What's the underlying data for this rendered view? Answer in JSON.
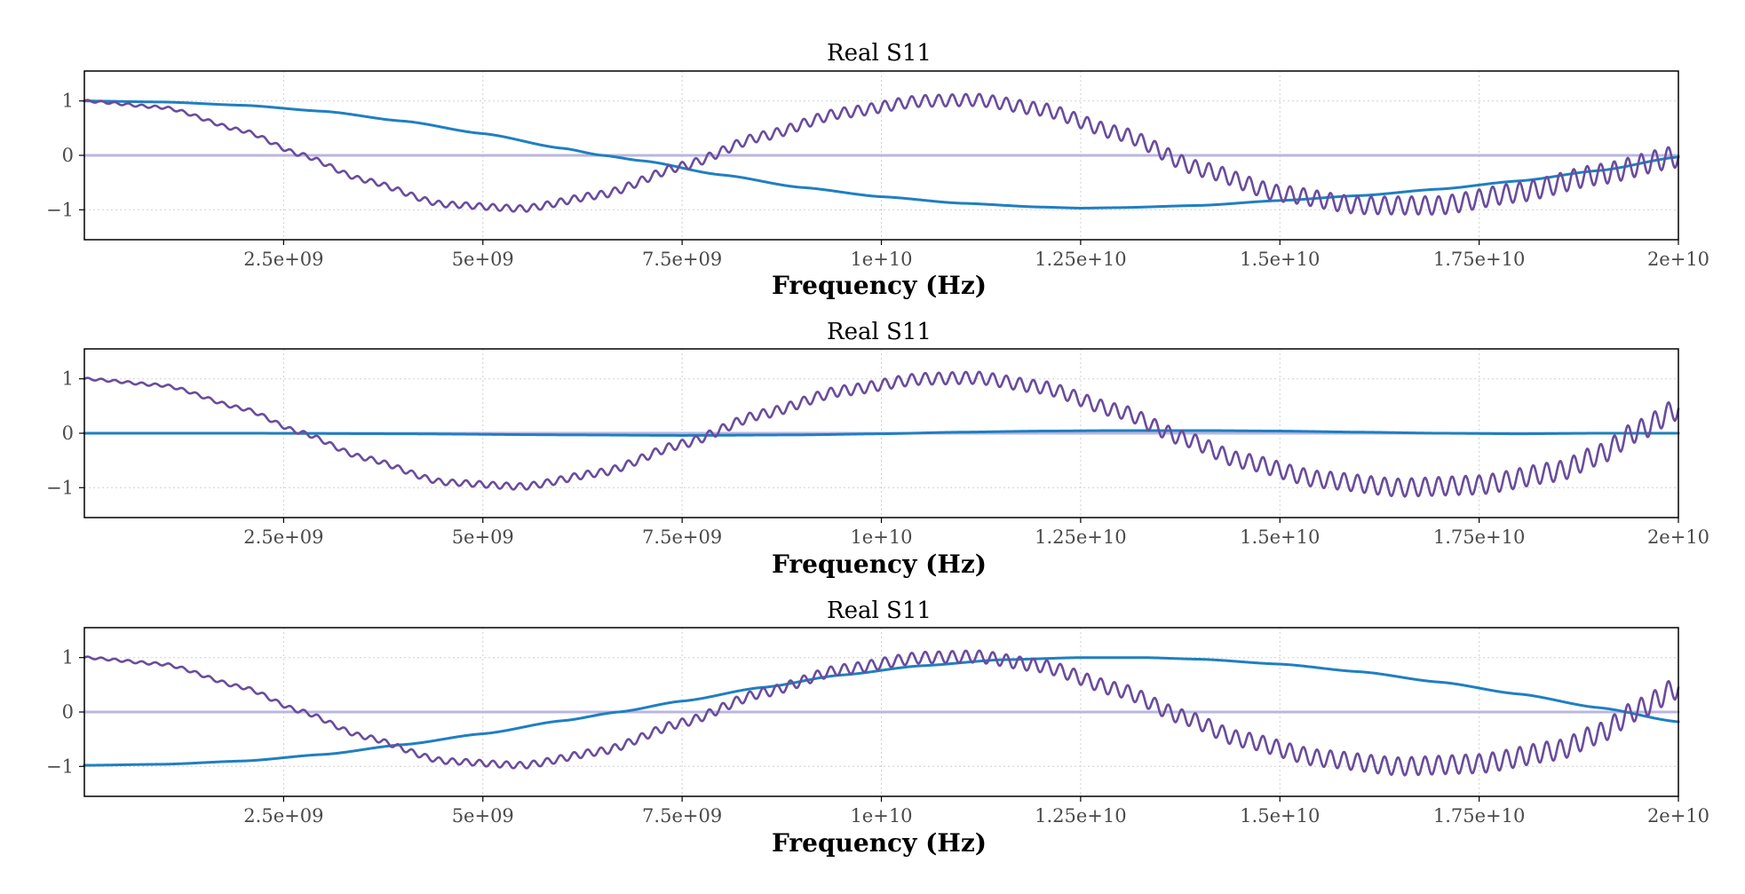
{
  "chart_data": [
    {
      "type": "line",
      "title": "Real S11",
      "xlabel": "Frequency (Hz)",
      "ylabel": "",
      "xlim": [
        0,
        20000000000
      ],
      "ylim": [
        -1.55,
        1.55
      ],
      "xticks": [
        2500000000,
        5000000000,
        7500000000,
        10000000000,
        12500000000,
        15000000000,
        17500000000,
        20000000000
      ],
      "xtick_labels": [
        "2.5e+09",
        "5e+09",
        "7.5e+09",
        "1e+10",
        "1.25e+10",
        "1.5e+10",
        "1.75e+10",
        "2e+10"
      ],
      "yticks": [
        -1,
        0,
        1
      ],
      "ytick_labels": [
        "−1",
        "0",
        "1"
      ],
      "grid": true,
      "series": [
        {
          "color": "#b9b6e0",
          "kind": "flat",
          "x": [
            0,
            20000000000
          ],
          "y": [
            0,
            0
          ]
        },
        {
          "color": "#1f7fc2",
          "kind": "smooth",
          "x": [
            0,
            1000000000,
            2000000000,
            3000000000,
            4000000000,
            5000000000,
            6000000000,
            6500000000,
            7000000000,
            8000000000,
            9000000000,
            10000000000,
            11000000000,
            12000000000,
            12500000000,
            13000000000,
            14000000000,
            15000000000,
            16000000000,
            17000000000,
            18000000000,
            19000000000,
            20000000000
          ],
          "y": [
            1.0,
            0.98,
            0.92,
            0.81,
            0.63,
            0.4,
            0.13,
            0.0,
            -0.1,
            -0.36,
            -0.59,
            -0.76,
            -0.88,
            -0.95,
            -0.97,
            -0.96,
            -0.92,
            -0.83,
            -0.74,
            -0.62,
            -0.47,
            -0.28,
            -0.03
          ]
        },
        {
          "color": "#6a4c9c",
          "kind": "ripple",
          "x": [
            0,
            1000000000,
            2000000000,
            2700000000,
            3500000000,
            4500000000,
            5500000000,
            6500000000,
            7500000000,
            8500000000,
            9500000000,
            10500000000,
            11200000000,
            12000000000,
            13000000000,
            14000000000,
            15000000000,
            16000000000,
            17000000000,
            18000000000,
            19000000000,
            20000000000
          ],
          "y": [
            1.0,
            0.88,
            0.45,
            0.02,
            -0.45,
            -0.9,
            -0.98,
            -0.72,
            -0.2,
            0.35,
            0.78,
            1.0,
            1.02,
            0.85,
            0.4,
            -0.25,
            -0.7,
            -0.92,
            -0.92,
            -0.68,
            -0.35,
            -0.02
          ]
        }
      ]
    },
    {
      "type": "line",
      "title": "Real S11",
      "xlabel": "Frequency (Hz)",
      "ylabel": "",
      "xlim": [
        0,
        20000000000
      ],
      "ylim": [
        -1.55,
        1.55
      ],
      "xticks": [
        2500000000,
        5000000000,
        7500000000,
        10000000000,
        12500000000,
        15000000000,
        17500000000,
        20000000000
      ],
      "xtick_labels": [
        "2.5e+09",
        "5e+09",
        "7.5e+09",
        "1e+10",
        "1.25e+10",
        "1.5e+10",
        "1.75e+10",
        "2e+10"
      ],
      "yticks": [
        -1,
        0,
        1
      ],
      "ytick_labels": [
        "−1",
        "0",
        "1"
      ],
      "grid": true,
      "series": [
        {
          "color": "#b9b6e0",
          "kind": "flat",
          "x": [
            0,
            20000000000
          ],
          "y": [
            0,
            0
          ]
        },
        {
          "color": "#1f7fc2",
          "kind": "smooth",
          "x": [
            0,
            2000000000,
            4000000000,
            6000000000,
            7500000000,
            9000000000,
            10000000000,
            11000000000,
            12000000000,
            13000000000,
            14000000000,
            15000000000,
            16000000000,
            17000000000,
            18000000000,
            19000000000,
            20000000000
          ],
          "y": [
            0.0,
            0.0,
            -0.01,
            -0.03,
            -0.04,
            -0.03,
            -0.01,
            0.02,
            0.04,
            0.05,
            0.05,
            0.04,
            0.02,
            0.0,
            -0.01,
            0.0,
            0.0
          ]
        },
        {
          "color": "#6a4c9c",
          "kind": "ripple",
          "x": [
            0,
            1000000000,
            2000000000,
            2700000000,
            3500000000,
            4500000000,
            5500000000,
            6500000000,
            7500000000,
            8500000000,
            9500000000,
            10500000000,
            11200000000,
            12000000000,
            13000000000,
            13800000000,
            14500000000,
            15500000000,
            16500000000,
            17500000000,
            18500000000,
            19000000000,
            19500000000,
            20000000000
          ],
          "y": [
            1.0,
            0.88,
            0.45,
            0.02,
            -0.45,
            -0.9,
            -0.98,
            -0.72,
            -0.2,
            0.35,
            0.78,
            1.0,
            1.02,
            0.85,
            0.4,
            -0.1,
            -0.5,
            -0.85,
            -1.0,
            -0.95,
            -0.7,
            -0.4,
            0.05,
            0.45
          ]
        }
      ]
    },
    {
      "type": "line",
      "title": "Real S11",
      "xlabel": "Frequency (Hz)",
      "ylabel": "",
      "xlim": [
        0,
        20000000000
      ],
      "ylim": [
        -1.55,
        1.55
      ],
      "xticks": [
        2500000000,
        5000000000,
        7500000000,
        10000000000,
        12500000000,
        15000000000,
        17500000000,
        20000000000
      ],
      "xtick_labels": [
        "2.5e+09",
        "5e+09",
        "7.5e+09",
        "1e+10",
        "1.25e+10",
        "1.5e+10",
        "1.75e+10",
        "2e+10"
      ],
      "yticks": [
        -1,
        0,
        1
      ],
      "ytick_labels": [
        "−1",
        "0",
        "1"
      ],
      "grid": true,
      "series": [
        {
          "color": "#b9b6e0",
          "kind": "flat",
          "x": [
            0,
            20000000000
          ],
          "y": [
            0,
            0
          ]
        },
        {
          "color": "#1f7fc2",
          "kind": "smooth",
          "x": [
            0,
            1000000000,
            2000000000,
            3000000000,
            4000000000,
            5000000000,
            6000000000,
            6700000000,
            7500000000,
            8500000000,
            9500000000,
            10500000000,
            11500000000,
            12500000000,
            13300000000,
            14000000000,
            15000000000,
            16000000000,
            17000000000,
            18000000000,
            19000000000,
            20000000000
          ],
          "y": [
            -0.98,
            -0.96,
            -0.9,
            -0.78,
            -0.6,
            -0.4,
            -0.16,
            0.0,
            0.2,
            0.45,
            0.68,
            0.85,
            0.96,
            1.0,
            1.0,
            0.97,
            0.88,
            0.74,
            0.55,
            0.33,
            0.08,
            -0.18
          ]
        },
        {
          "color": "#6a4c9c",
          "kind": "ripple",
          "x": [
            0,
            1000000000,
            2000000000,
            2700000000,
            3500000000,
            4500000000,
            5500000000,
            6500000000,
            7500000000,
            8500000000,
            9500000000,
            10500000000,
            11200000000,
            12000000000,
            13000000000,
            13800000000,
            14500000000,
            15500000000,
            16500000000,
            17500000000,
            18500000000,
            19000000000,
            19500000000,
            20000000000
          ],
          "y": [
            1.0,
            0.88,
            0.45,
            0.02,
            -0.45,
            -0.9,
            -0.98,
            -0.72,
            -0.2,
            0.35,
            0.78,
            1.0,
            1.02,
            0.85,
            0.4,
            -0.1,
            -0.5,
            -0.85,
            -1.0,
            -0.95,
            -0.7,
            -0.4,
            0.05,
            0.45
          ]
        }
      ]
    }
  ]
}
